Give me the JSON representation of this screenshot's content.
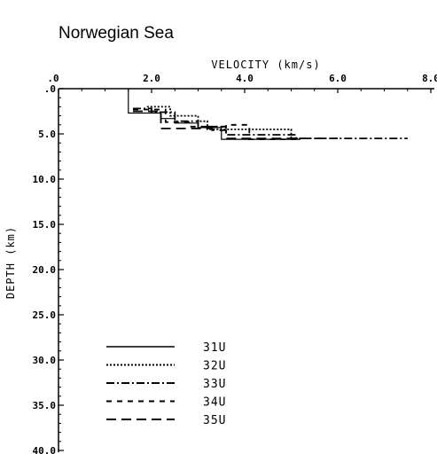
{
  "chart_data": {
    "type": "line",
    "title": "Norwegian Sea",
    "xlabel": "VELOCITY (km/s)",
    "ylabel": "DEPTH (km)",
    "xlim": [
      0,
      8.0
    ],
    "ylim": [
      0,
      40.0
    ],
    "y_inverted": true,
    "x_axis_position": "top",
    "x_ticks": [
      0,
      2.0,
      4.0,
      6.0,
      8.0
    ],
    "x_tick_labels": [
      ".0",
      "2.0",
      "4.0",
      "6.0",
      "8.0"
    ],
    "y_ticks": [
      0,
      5.0,
      10.0,
      15.0,
      20.0,
      25.0,
      30.0,
      35.0,
      40.0
    ],
    "y_tick_labels": [
      ".0",
      "5.0",
      "10.0",
      "15.0",
      "20.0",
      "25.0",
      "30.0",
      "35.0",
      "40.0"
    ],
    "legend_position": "bottom-left",
    "series": [
      {
        "name": "31U",
        "dash": "solid",
        "points": [
          [
            1.5,
            0
          ],
          [
            1.5,
            2.7
          ],
          [
            2.2,
            2.7
          ],
          [
            2.2,
            3.3
          ],
          [
            2.5,
            3.3
          ],
          [
            2.5,
            3.8
          ],
          [
            3.0,
            3.8
          ],
          [
            3.0,
            4.3
          ],
          [
            3.5,
            4.3
          ],
          [
            3.5,
            5.6
          ],
          [
            5.2,
            5.6
          ]
        ]
      },
      {
        "name": "32U",
        "dash": "dotted",
        "points": [
          [
            1.9,
            2.0
          ],
          [
            2.4,
            2.0
          ],
          [
            2.4,
            3.0
          ],
          [
            3.0,
            3.0
          ],
          [
            3.0,
            3.6
          ],
          [
            3.2,
            3.6
          ],
          [
            3.2,
            4.5
          ],
          [
            5.0,
            4.5
          ],
          [
            5.0,
            5.5
          ],
          [
            5.2,
            5.5
          ]
        ]
      },
      {
        "name": "33U",
        "dash": "dashdot",
        "points": [
          [
            1.6,
            2.2
          ],
          [
            2.0,
            2.2
          ],
          [
            2.0,
            2.6
          ],
          [
            2.5,
            2.6
          ],
          [
            2.5,
            3.6
          ],
          [
            3.0,
            3.6
          ],
          [
            3.0,
            4.2
          ],
          [
            3.6,
            4.2
          ],
          [
            3.6,
            5.1
          ],
          [
            5.1,
            5.1
          ],
          [
            5.1,
            5.5
          ],
          [
            7.5,
            5.5
          ]
        ]
      },
      {
        "name": "34U",
        "dash": "shortdash",
        "points": [
          [
            1.6,
            2.3
          ],
          [
            2.3,
            2.3
          ],
          [
            2.3,
            3.7
          ],
          [
            2.8,
            3.7
          ],
          [
            2.8,
            4.2
          ],
          [
            3.6,
            4.2
          ],
          [
            3.6,
            4.0
          ],
          [
            4.1,
            4.0
          ],
          [
            4.1,
            5.6
          ],
          [
            5.2,
            5.6
          ]
        ]
      },
      {
        "name": "35U",
        "dash": "longdash",
        "points": [
          [
            1.6,
            2.5
          ],
          [
            2.2,
            2.5
          ],
          [
            2.2,
            4.4
          ],
          [
            3.3,
            4.4
          ],
          [
            3.3,
            4.6
          ],
          [
            3.6,
            4.6
          ],
          [
            3.6,
            5.5
          ],
          [
            6.0,
            5.5
          ]
        ]
      }
    ]
  }
}
